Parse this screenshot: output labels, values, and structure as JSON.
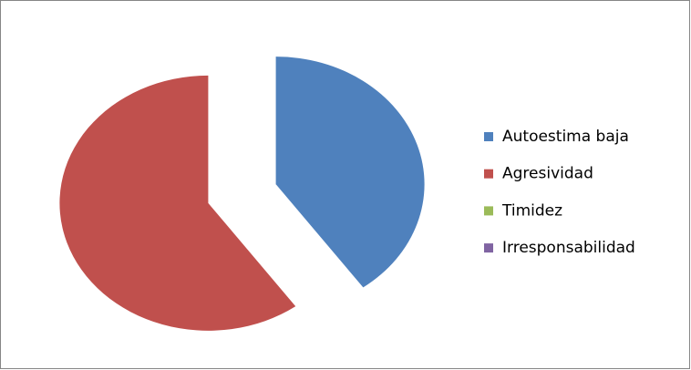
{
  "chart_data": {
    "type": "pie",
    "categories": [
      "Autoestima baja",
      "Agresividad",
      "Timidez",
      "Irresponsabilidad"
    ],
    "values": [
      40,
      60,
      0,
      0
    ],
    "colors": [
      "#4f81bd",
      "#c0504d",
      "#9bbb59",
      "#8064a2"
    ],
    "exploded": true,
    "legend": "right"
  }
}
